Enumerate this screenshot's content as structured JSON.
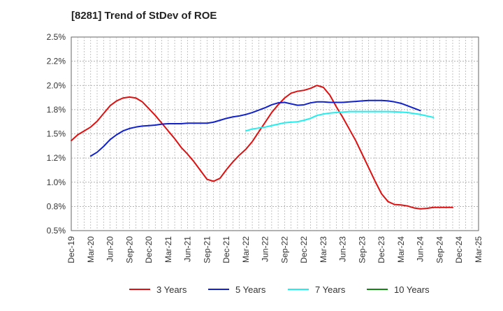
{
  "title": "[8281]  Trend of StDev of ROE",
  "chart_data": {
    "type": "line",
    "title": "[8281]  Trend of StDev of ROE",
    "xlabel": "",
    "ylabel": "",
    "x_tick_labels": [
      "Dec-19",
      "Mar-20",
      "Jun-20",
      "Sep-20",
      "Dec-20",
      "Mar-21",
      "Jun-21",
      "Sep-21",
      "Dec-21",
      "Mar-22",
      "Jun-22",
      "Sep-22",
      "Dec-22",
      "Mar-23",
      "Jun-23",
      "Sep-23",
      "Dec-23",
      "Mar-24",
      "Jun-24",
      "Sep-24",
      "Dec-24",
      "Mar-25"
    ],
    "y_tick_labels": [
      "0.5%",
      "0.8%",
      "1.0%",
      "1.2%",
      "1.5%",
      "1.8%",
      "2.0%",
      "2.2%",
      "2.5%"
    ],
    "ylim": [
      0.5,
      2.5
    ],
    "grid": true,
    "legend_position": "bottom",
    "series": [
      {
        "name": "3 Years",
        "color": "#dd1111",
        "start_index": 0,
        "values": [
          1.43,
          1.49,
          1.53,
          1.57,
          1.63,
          1.71,
          1.79,
          1.84,
          1.87,
          1.88,
          1.87,
          1.83,
          1.76,
          1.69,
          1.61,
          1.53,
          1.45,
          1.36,
          1.29,
          1.21,
          1.12,
          1.03,
          1.01,
          1.04,
          1.13,
          1.21,
          1.28,
          1.34,
          1.42,
          1.52,
          1.62,
          1.72,
          1.8,
          1.87,
          1.92,
          1.94,
          1.95,
          1.97,
          2.0,
          1.98,
          1.9,
          1.78,
          1.67,
          1.55,
          1.43,
          1.29,
          1.15,
          1.01,
          0.88,
          0.8,
          0.77,
          0.765,
          0.755,
          0.735,
          0.725,
          0.73,
          0.74,
          0.74,
          0.74,
          0.74
        ]
      },
      {
        "name": "5 Years",
        "color": "#1122cc",
        "start_index": 3,
        "values": [
          1.27,
          1.31,
          1.37,
          1.44,
          1.49,
          1.53,
          1.555,
          1.57,
          1.58,
          1.585,
          1.59,
          1.6,
          1.605,
          1.605,
          1.605,
          1.61,
          1.61,
          1.61,
          1.61,
          1.62,
          1.64,
          1.66,
          1.675,
          1.685,
          1.7,
          1.72,
          1.745,
          1.77,
          1.8,
          1.82,
          1.825,
          1.81,
          1.795,
          1.8,
          1.82,
          1.83,
          1.83,
          1.825,
          1.825,
          1.825,
          1.83,
          1.835,
          1.84,
          1.845,
          1.845,
          1.845,
          1.84,
          1.83,
          1.815,
          1.79,
          1.765,
          1.74
        ]
      },
      {
        "name": "7 Years",
        "color": "#22eeee",
        "start_index": 27,
        "values": [
          1.53,
          1.55,
          1.56,
          1.57,
          1.585,
          1.6,
          1.615,
          1.62,
          1.625,
          1.64,
          1.66,
          1.69,
          1.705,
          1.715,
          1.72,
          1.725,
          1.73,
          1.73,
          1.73,
          1.73,
          1.73,
          1.73,
          1.73,
          1.728,
          1.725,
          1.72,
          1.71,
          1.7,
          1.685,
          1.67
        ]
      },
      {
        "name": "10 Years",
        "color": "#118811",
        "start_index": 0,
        "values": []
      }
    ]
  }
}
